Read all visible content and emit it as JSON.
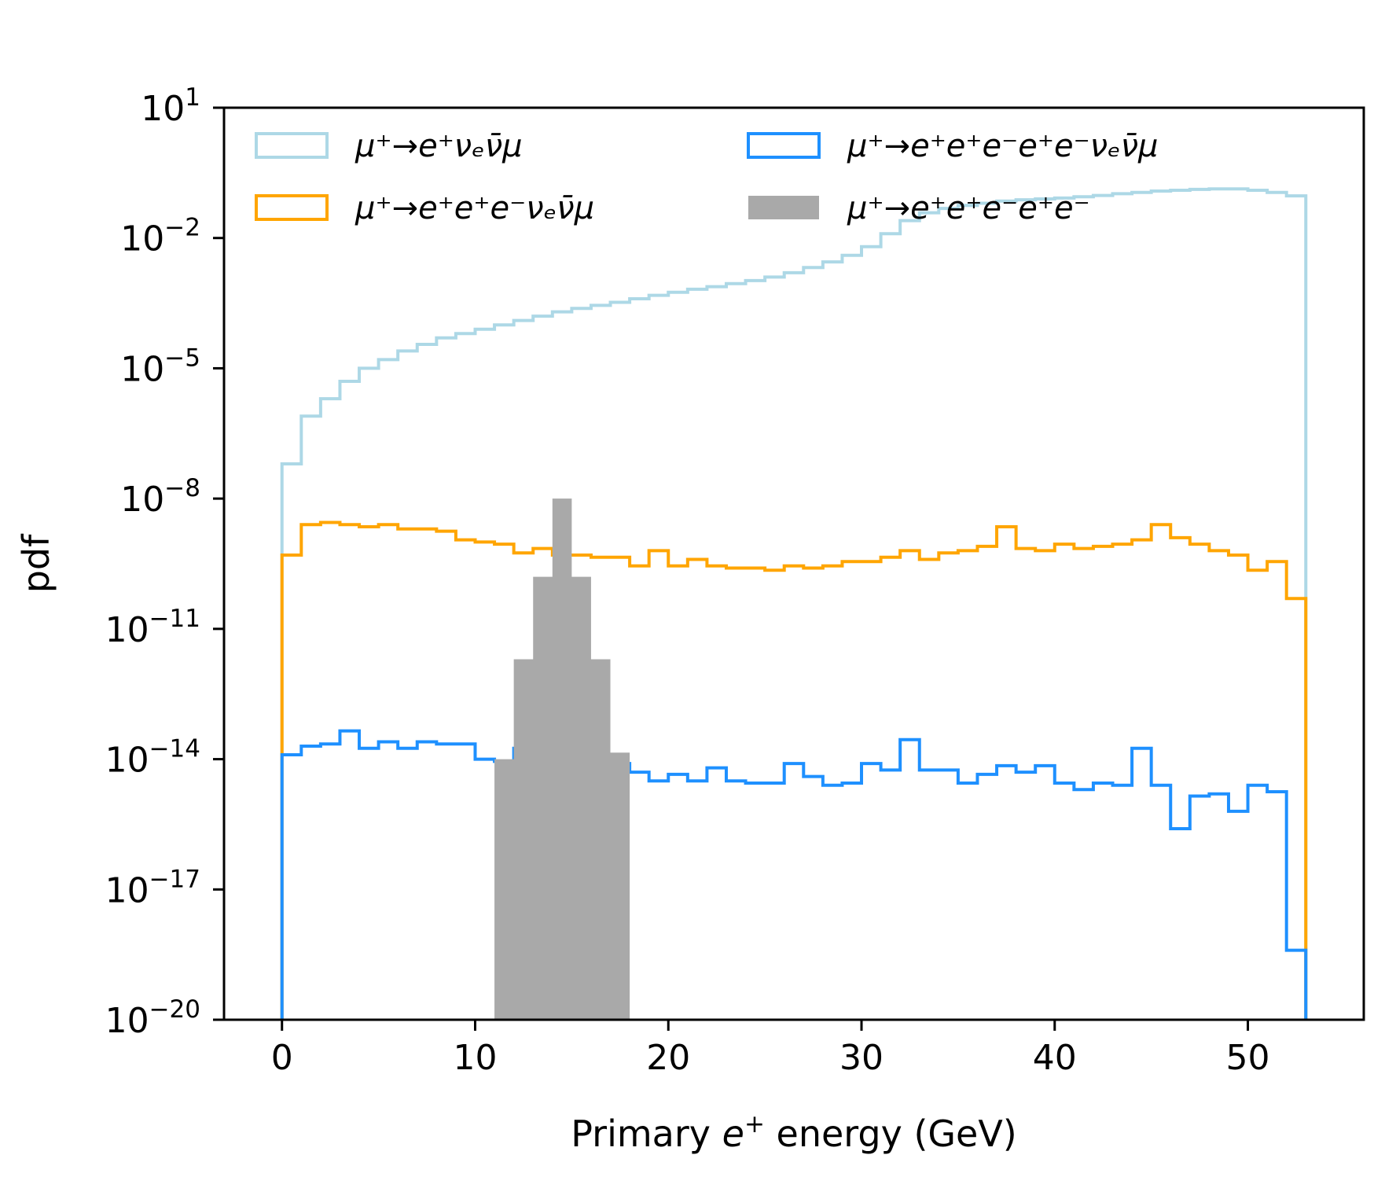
{
  "chart_data": {
    "type": "histogram",
    "title": "",
    "xlabel": "Primary e⁺ energy (GeV)",
    "xlabel_parts": {
      "before": "Primary ",
      "italic": "e",
      "sup": "+",
      "after": " energy (GeV)"
    },
    "ylabel": "pdf",
    "xlim": [
      -3,
      56
    ],
    "ylim_log10": [
      -20,
      1
    ],
    "yscale": "log",
    "x_ticks": [
      0,
      10,
      20,
      30,
      40,
      50
    ],
    "y_tick_exponents": [
      1,
      -2,
      -5,
      -8,
      -11,
      -14,
      -17,
      -20
    ],
    "y_tick_base": "10",
    "legend_location": "upper, two columns",
    "grid": false,
    "bin_edges": [
      0,
      1,
      2,
      3,
      4,
      5,
      6,
      7,
      8,
      9,
      10,
      11,
      12,
      13,
      14,
      15,
      16,
      17,
      18,
      19,
      20,
      21,
      22,
      23,
      24,
      25,
      26,
      27,
      28,
      29,
      30,
      31,
      32,
      33,
      34,
      35,
      36,
      37,
      38,
      39,
      40,
      41,
      42,
      43,
      44,
      45,
      46,
      47,
      48,
      49,
      50,
      51,
      52,
      53
    ],
    "series": [
      {
        "name": "μ⁺→e⁺νₑν̄_μ",
        "style": "step",
        "color": "#add8e6",
        "log10_values": [
          -7.2,
          -6.1,
          -5.7,
          -5.3,
          -5.0,
          -4.8,
          -4.6,
          -4.45,
          -4.3,
          -4.2,
          -4.1,
          -4.0,
          -3.9,
          -3.8,
          -3.7,
          -3.62,
          -3.55,
          -3.48,
          -3.4,
          -3.32,
          -3.25,
          -3.18,
          -3.12,
          -3.05,
          -2.98,
          -2.9,
          -2.8,
          -2.68,
          -2.55,
          -2.4,
          -2.2,
          -1.9,
          -1.6,
          -1.42,
          -1.32,
          -1.25,
          -1.2,
          -1.15,
          -1.12,
          -1.1,
          -1.08,
          -1.05,
          -1.02,
          -0.98,
          -0.95,
          -0.92,
          -0.9,
          -0.88,
          -0.87,
          -0.87,
          -0.9,
          -0.95,
          -1.03
        ]
      },
      {
        "name": "μ⁺→e⁺e⁺e⁻νₑν̄_μ",
        "style": "step",
        "color": "#ffa500",
        "log10_values": [
          -9.3,
          -8.6,
          -8.55,
          -8.6,
          -8.65,
          -8.6,
          -8.7,
          -8.7,
          -8.75,
          -8.95,
          -9.0,
          -9.05,
          -9.25,
          -9.15,
          -9.3,
          -9.3,
          -9.35,
          -9.35,
          -9.55,
          -9.2,
          -9.55,
          -9.4,
          -9.55,
          -9.6,
          -9.6,
          -9.65,
          -9.55,
          -9.6,
          -9.55,
          -9.45,
          -9.45,
          -9.35,
          -9.2,
          -9.4,
          -9.25,
          -9.2,
          -9.1,
          -8.65,
          -9.15,
          -9.2,
          -9.05,
          -9.15,
          -9.1,
          -9.05,
          -8.95,
          -8.6,
          -8.9,
          -9.05,
          -9.2,
          -9.3,
          -9.65,
          -9.45,
          -10.3
        ]
      },
      {
        "name": "μ⁺→e⁺e⁺e⁻e⁺e⁻νₑν̄_μ",
        "style": "step",
        "color": "#1e90ff",
        "log10_values": [
          -13.9,
          -13.7,
          -13.65,
          -13.35,
          -13.75,
          -13.6,
          -13.75,
          -13.6,
          -13.65,
          -13.65,
          -14.0,
          -14.05,
          -13.75,
          -13.8,
          -14.05,
          -14.15,
          -14.2,
          -14.1,
          -14.3,
          -14.5,
          -14.35,
          -14.5,
          -14.2,
          -14.5,
          -14.55,
          -14.55,
          -14.1,
          -14.4,
          -14.6,
          -14.55,
          -14.1,
          -14.25,
          -13.55,
          -14.25,
          -14.25,
          -14.55,
          -14.35,
          -14.15,
          -14.3,
          -14.15,
          -14.55,
          -14.7,
          -14.55,
          -14.6,
          -13.75,
          -14.6,
          -15.6,
          -14.85,
          -14.8,
          -15.2,
          -14.6,
          -14.75,
          -18.4
        ]
      },
      {
        "name": "μ⁺→e⁺e⁺e⁻e⁺e⁻",
        "style": "filled",
        "color": "#a9a9a9",
        "bin_edges": [
          11,
          12,
          13,
          14,
          15,
          16,
          17,
          18
        ],
        "log10_values": [
          -14.0,
          -11.7,
          -9.8,
          -8.0,
          -9.8,
          -11.7,
          -13.85
        ]
      }
    ]
  },
  "legend": [
    {
      "id": "single",
      "color": "#add8e6",
      "style": "outline",
      "label": "μ⁺→e⁺νₑν̄μ"
    },
    {
      "id": "triple",
      "color": "#ffa500",
      "style": "outline",
      "label": "μ⁺→e⁺e⁺e⁻νₑν̄μ"
    },
    {
      "id": "five",
      "color": "#1e90ff",
      "style": "outline",
      "label": "μ⁺→e⁺e⁺e⁻e⁺e⁻νₑν̄μ"
    },
    {
      "id": "signal",
      "color": "#a9a9a9",
      "style": "filled",
      "label": "μ⁺→e⁺e⁺e⁻e⁺e⁻"
    }
  ]
}
